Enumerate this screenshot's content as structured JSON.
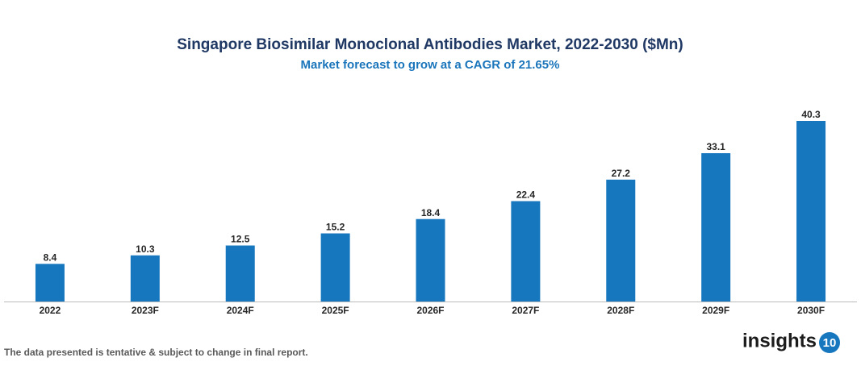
{
  "chart_data": {
    "type": "bar",
    "title": "Singapore Biosimilar Monoclonal Antibodies Market, 2022-2030 ($Mn)",
    "subtitle": "Market forecast to grow at a CAGR of 21.65%",
    "categories": [
      "2022",
      "2023F",
      "2024F",
      "2025F",
      "2026F",
      "2027F",
      "2028F",
      "2029F",
      "2030F"
    ],
    "values": [
      8.4,
      10.3,
      12.5,
      15.2,
      18.4,
      22.4,
      27.2,
      33.1,
      40.3
    ],
    "color": "#1677bf"
  },
  "footnote": "The data presented is tentative & subject to change in final report.",
  "logo": {
    "text": "insights",
    "number": "10"
  }
}
